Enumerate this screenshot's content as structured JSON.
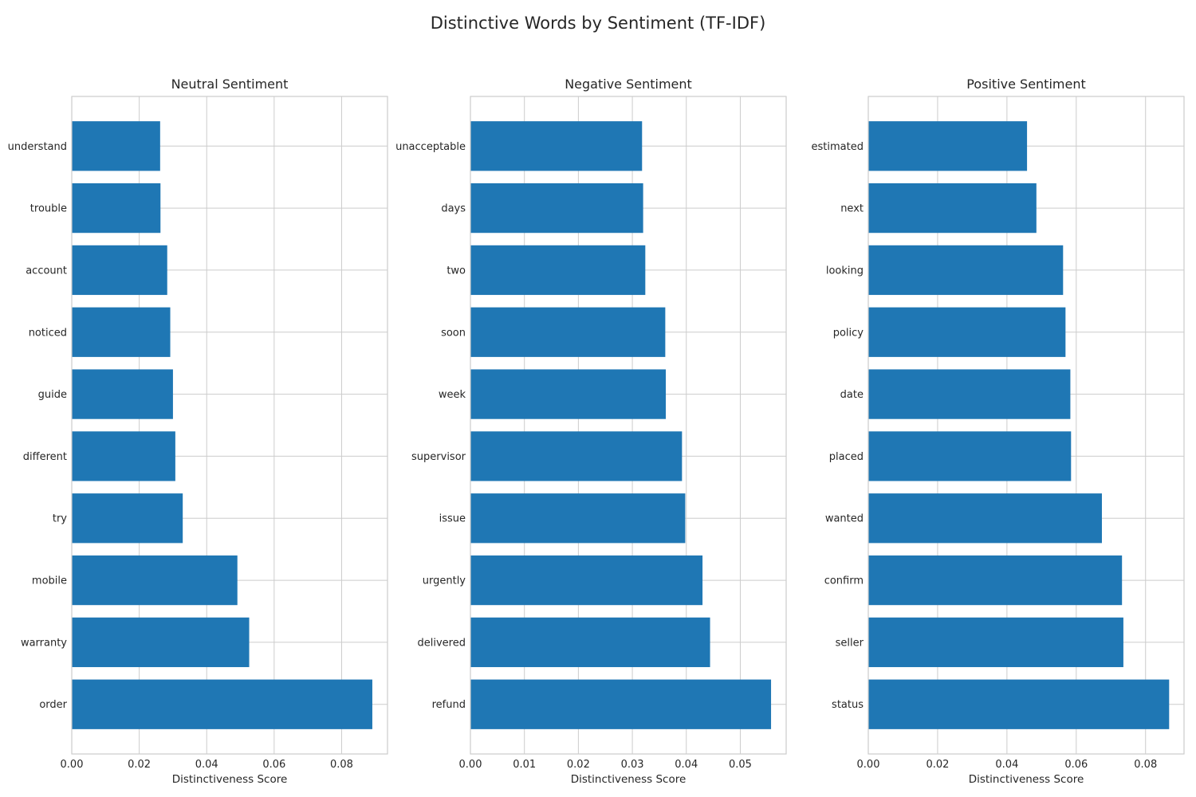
{
  "figure_title": "Distinctive Words by Sentiment (TF-IDF)",
  "colors": {
    "bar": "#1f77b4",
    "grid": "#cccccc",
    "text": "#262626"
  },
  "chart_data": [
    {
      "type": "bar",
      "orientation": "horizontal",
      "title": "Neutral Sentiment",
      "xlabel": "Distinctiveness Score",
      "ylabel": "",
      "categories": [
        "understand",
        "trouble",
        "account",
        "noticed",
        "guide",
        "different",
        "try",
        "mobile",
        "warranty",
        "order"
      ],
      "values": [
        0.0262,
        0.0263,
        0.0283,
        0.0292,
        0.03,
        0.0307,
        0.0329,
        0.0491,
        0.0526,
        0.0891
      ],
      "xlim": [
        0,
        0.0936
      ],
      "xticks": [
        "0.00",
        "0.02",
        "0.04",
        "0.06",
        "0.08"
      ],
      "grid": true
    },
    {
      "type": "bar",
      "orientation": "horizontal",
      "title": "Negative Sentiment",
      "xlabel": "Distinctiveness Score",
      "ylabel": "",
      "categories": [
        "unacceptable",
        "days",
        "two",
        "soon",
        "week",
        "supervisor",
        "issue",
        "urgently",
        "delivered",
        "refund"
      ],
      "values": [
        0.0318,
        0.032,
        0.0324,
        0.0361,
        0.0362,
        0.0392,
        0.0398,
        0.043,
        0.0444,
        0.0557
      ],
      "xlim": [
        0,
        0.0585
      ],
      "xticks": [
        "0.00",
        "0.01",
        "0.02",
        "0.03",
        "0.04",
        "0.05"
      ],
      "grid": true
    },
    {
      "type": "bar",
      "orientation": "horizontal",
      "title": "Positive Sentiment",
      "xlabel": "Distinctiveness Score",
      "ylabel": "",
      "categories": [
        "estimated",
        "next",
        "looking",
        "policy",
        "date",
        "placed",
        "wanted",
        "confirm",
        "seller",
        "status"
      ],
      "values": [
        0.0458,
        0.0485,
        0.0562,
        0.0569,
        0.0583,
        0.0585,
        0.0674,
        0.0732,
        0.0736,
        0.0868
      ],
      "xlim": [
        0,
        0.0911
      ],
      "xticks": [
        "0.00",
        "0.02",
        "0.04",
        "0.06",
        "0.08"
      ],
      "grid": true
    }
  ]
}
